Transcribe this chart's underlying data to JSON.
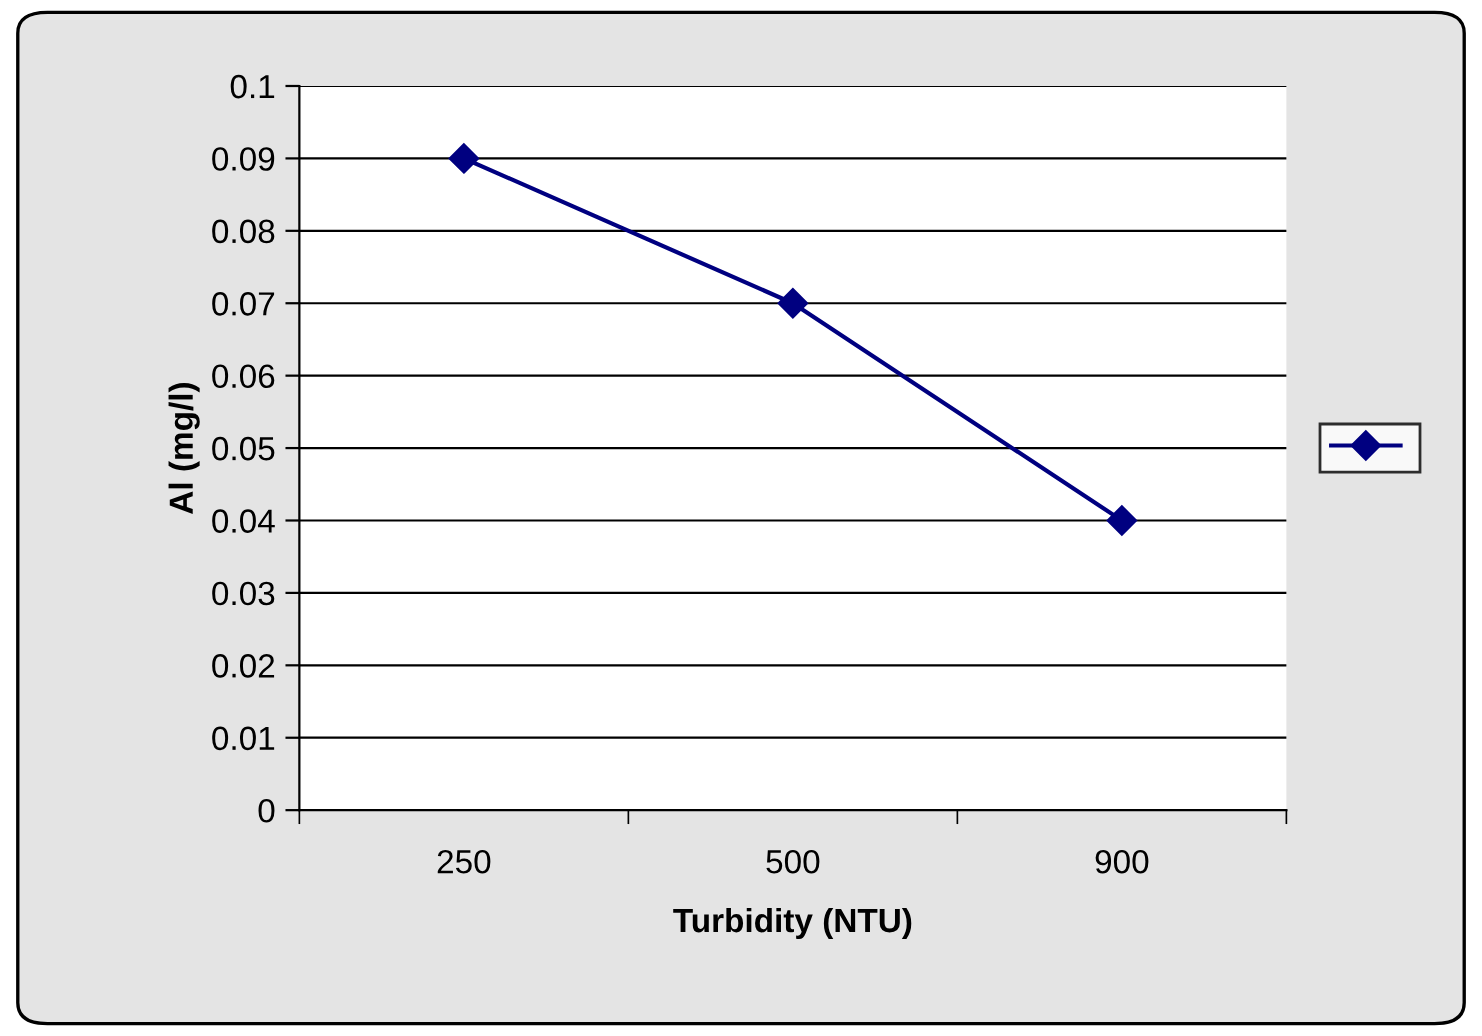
{
  "chart_data": {
    "type": "line",
    "xlabel": "Turbidity (NTU)",
    "ylabel": "Al (mg/l)",
    "categories": [
      "250",
      "500",
      "900"
    ],
    "series": [
      {
        "color": "#000080",
        "values": [
          0.09,
          0.07,
          0.04
        ]
      }
    ],
    "ylim": [
      0,
      0.1
    ],
    "yticks": [
      0,
      0.01,
      0.02,
      0.03,
      0.04,
      0.05,
      0.06,
      0.07,
      0.08,
      0.09,
      0.1
    ],
    "grid": "y",
    "marker": "diamond",
    "line_style": "solid"
  }
}
